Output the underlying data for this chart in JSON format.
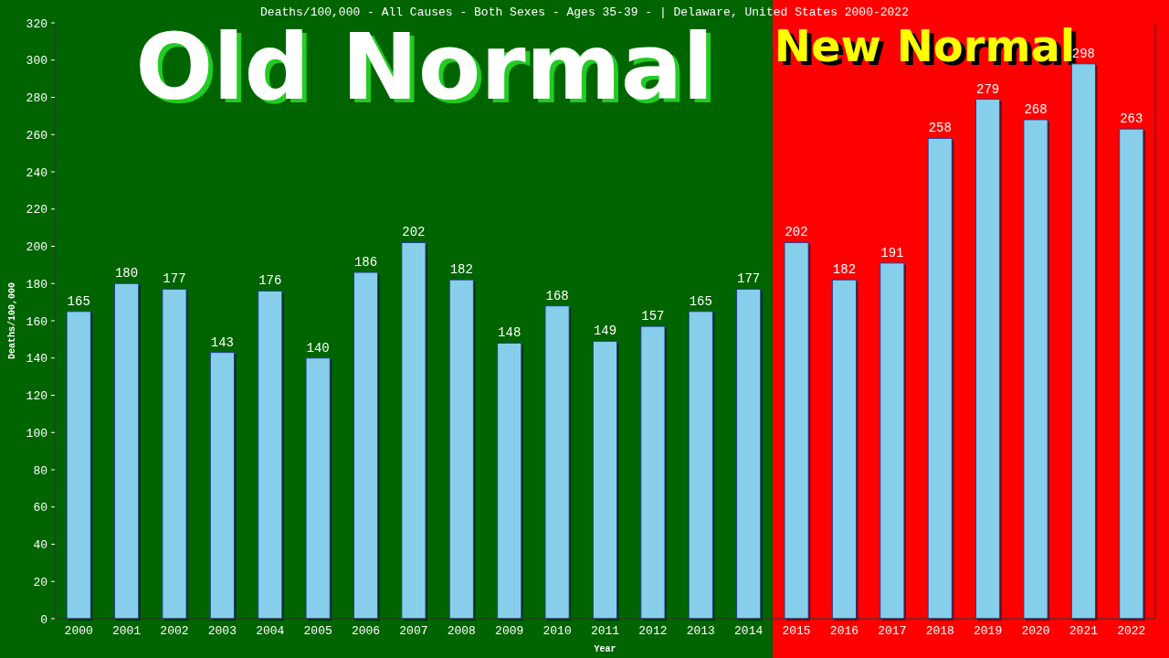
{
  "chart_data": {
    "type": "bar",
    "title": "Deaths/100,000 - All Causes - Both Sexes - Ages 35-39 -  | Delaware, United States 2000-2022",
    "xlabel": "Year",
    "ylabel": "Deaths/100,000",
    "categories": [
      "2000",
      "2001",
      "2002",
      "2003",
      "2004",
      "2005",
      "2006",
      "2007",
      "2008",
      "2009",
      "2010",
      "2011",
      "2012",
      "2013",
      "2014",
      "2015",
      "2016",
      "2017",
      "2018",
      "2019",
      "2020",
      "2021",
      "2022"
    ],
    "values": [
      165,
      180,
      177,
      143,
      176,
      140,
      186,
      202,
      182,
      148,
      168,
      149,
      157,
      165,
      177,
      202,
      182,
      191,
      258,
      279,
      268,
      298,
      263
    ],
    "color": "#87ceeb",
    "data_labels": true,
    "grid": false,
    "ylim": [
      0,
      320
    ],
    "yticks": [
      0,
      20,
      40,
      60,
      80,
      100,
      120,
      140,
      160,
      180,
      200,
      220,
      240,
      260,
      280,
      300,
      320
    ],
    "bands": [
      {
        "axis": "x",
        "from": "2000",
        "to": "2014",
        "label": "Old Normal",
        "color": "#006400"
      },
      {
        "axis": "x",
        "from": "2015",
        "to": "2022",
        "label": "New Normal",
        "color": "#ff0000"
      }
    ]
  }
}
